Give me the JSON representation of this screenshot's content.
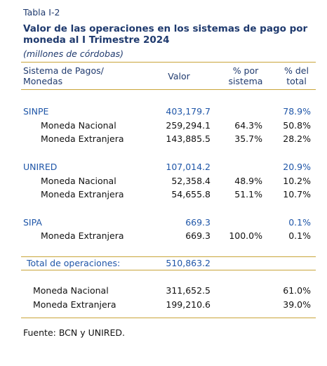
{
  "header": {
    "label": "Tabla I-2",
    "title": "Valor de las operaciones en los sistemas de pago por moneda al I Trimestre 2024",
    "subtitle": "(millones de córdobas)"
  },
  "table": {
    "columns": [
      "Sistema de Pagos/ Monedas",
      "Valor",
      "% por sistema",
      "% del total"
    ],
    "systems": [
      {
        "name": "SINPE",
        "value": "403,179.7",
        "total_share": "78.9%",
        "currencies": [
          {
            "name": "Moneda Nacional",
            "value": "259,294.1",
            "system_share": "64.3%",
            "total_share": "50.8%"
          },
          {
            "name": "Moneda Extranjera",
            "value": "143,885.5",
            "system_share": "35.7%",
            "total_share": "28.2%"
          }
        ]
      },
      {
        "name": "UNIRED",
        "value": "107,014.2",
        "total_share": "20.9%",
        "currencies": [
          {
            "name": "Moneda Nacional",
            "value": "52,358.4",
            "system_share": "48.9%",
            "total_share": "10.2%"
          },
          {
            "name": "Moneda Extranjera",
            "value": "54,655.8",
            "system_share": "51.1%",
            "total_share": "10.7%"
          }
        ]
      },
      {
        "name": "SIPA",
        "value": "669.3",
        "total_share": "0.1%",
        "currencies": [
          {
            "name": "Moneda Extranjera",
            "value": "669.3",
            "system_share": "100.0%",
            "total_share": "0.1%"
          }
        ]
      }
    ],
    "total": {
      "label": "Total de operaciones:",
      "value": "510,863.2"
    },
    "summary": [
      {
        "name": "Moneda Nacional",
        "value": "311,652.5",
        "total_share": "61.0%"
      },
      {
        "name": "Moneda Extranjera",
        "value": "199,210.6",
        "total_share": "39.0%"
      }
    ]
  },
  "footer": "Fuente: BCN y UNIRED."
}
